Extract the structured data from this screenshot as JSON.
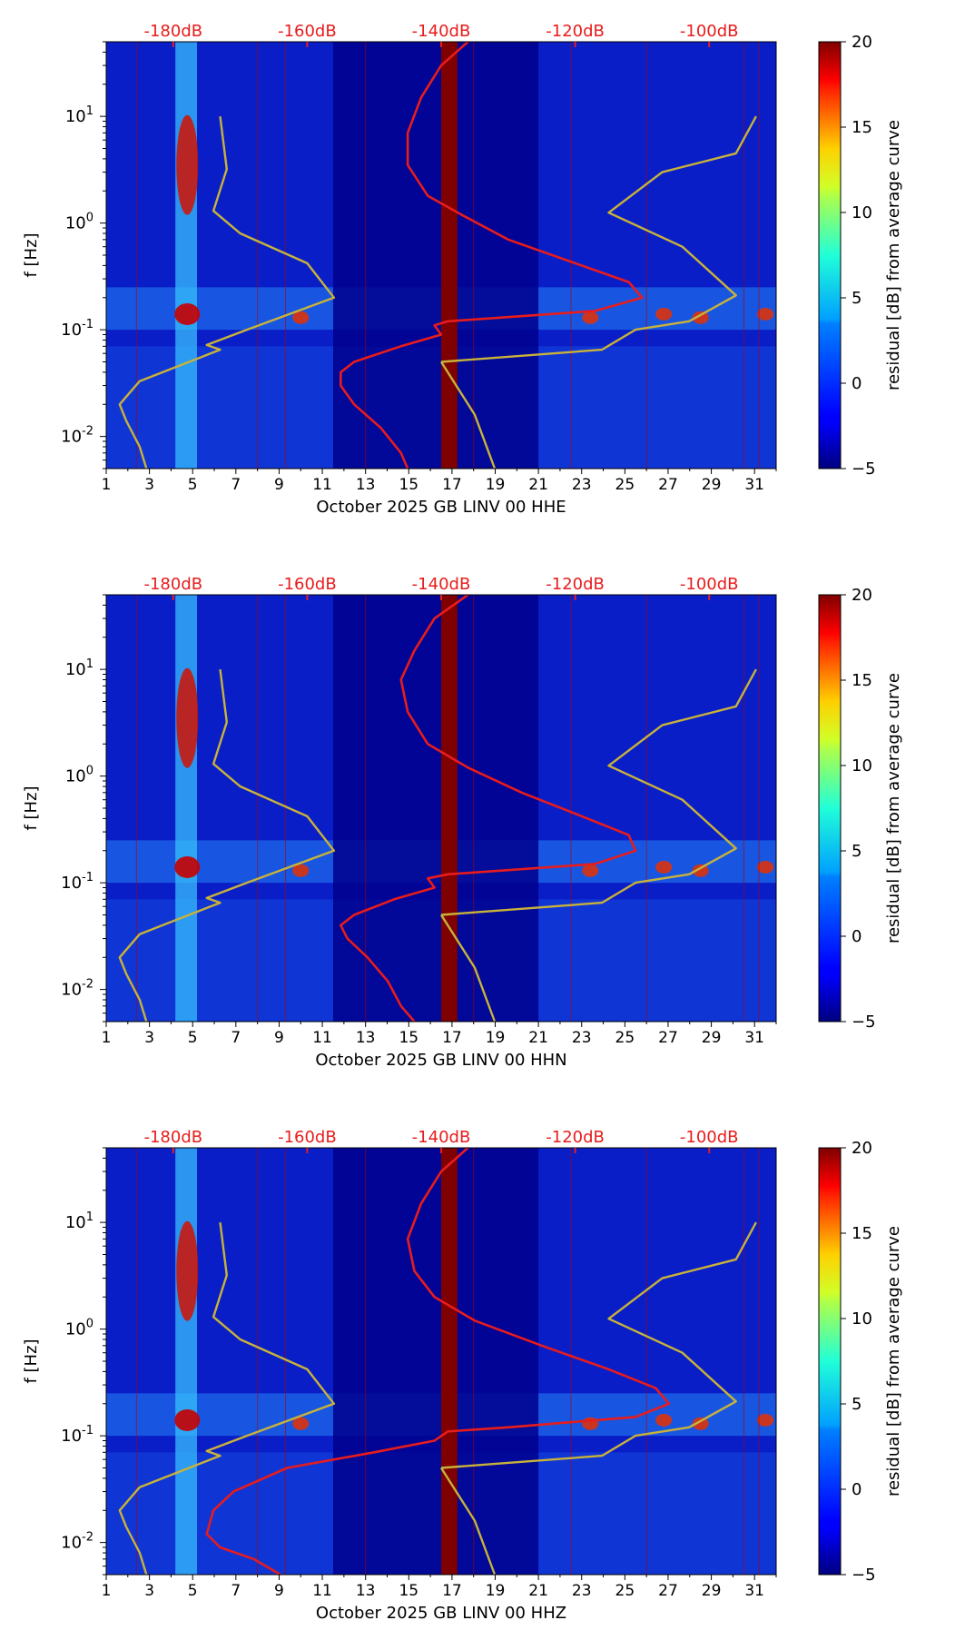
{
  "chart_data": [
    {
      "type": "heatmap",
      "title": "",
      "xlabel": "October 2025 GB LINV 00 HHE",
      "ylabel": "f [Hz]",
      "x_ticks": [
        "1",
        "3",
        "5",
        "7",
        "9",
        "11",
        "13",
        "15",
        "17",
        "19",
        "21",
        "23",
        "25",
        "27",
        "29",
        "31"
      ],
      "x_range": [
        1,
        32
      ],
      "y_range_hz": [
        0.005,
        50
      ],
      "y_ticks": [
        "10^-2",
        "10^-1",
        "10^0",
        "10^1"
      ],
      "top_axis_labels": [
        "-180dB",
        "-160dB",
        "-140dB",
        "-120dB",
        "-100dB"
      ],
      "top_axis_db_range": [
        -190,
        -90
      ],
      "colorbar": {
        "label": "residual [dB] from average curve",
        "min": -5,
        "max": 20,
        "ticks": [
          "−5",
          "0",
          "5",
          "10",
          "15",
          "20"
        ]
      },
      "series": [
        {
          "name": "reference noise model",
          "color": "#c8b23a",
          "points": [
            [
              -173,
              10
            ],
            [
              -172,
              3.2
            ],
            [
              -174,
              1.3
            ],
            [
              -170,
              0.8
            ],
            [
              -160,
              0.42
            ],
            [
              -156,
              0.2
            ],
            [
              -169,
              0.1
            ],
            [
              -175,
              0.072
            ],
            [
              -173,
              0.065
            ],
            [
              -185,
              0.033
            ],
            [
              -188,
              0.02
            ],
            [
              -187,
              0.014
            ],
            [
              -185,
              0.008
            ],
            [
              -184,
              0.005
            ]
          ]
        },
        {
          "name": "reference noise model",
          "color": "#c8b23a",
          "points": [
            [
              -140,
              0.05
            ],
            [
              -135,
              0.016
            ],
            [
              -132,
              0.005
            ]
          ]
        },
        {
          "name": "reference noise model",
          "color": "#c8b23a",
          "points": [
            [
              -93,
              10
            ],
            [
              -96,
              4.5
            ],
            [
              -107,
              3
            ],
            [
              -115,
              1.25
            ],
            [
              -104,
              0.6
            ],
            [
              -96,
              0.21
            ],
            [
              -103,
              0.12
            ],
            [
              -111,
              0.1
            ],
            [
              -116,
              0.065
            ],
            [
              -140,
              0.05
            ]
          ]
        },
        {
          "name": "average PSD",
          "color": "#e81c1c",
          "points": [
            [
              -136,
              50
            ],
            [
              -140,
              30
            ],
            [
              -143,
              15
            ],
            [
              -145,
              7
            ],
            [
              -145,
              3.5
            ],
            [
              -142,
              1.8
            ],
            [
              -137,
              1.2
            ],
            [
              -130,
              0.7
            ],
            [
              -120,
              0.42
            ],
            [
              -112,
              0.28
            ],
            [
              -110,
              0.2
            ],
            [
              -117,
              0.15
            ],
            [
              -139,
              0.12
            ],
            [
              -141,
              0.11
            ],
            [
              -140,
              0.09
            ],
            [
              -146,
              0.07
            ],
            [
              -153,
              0.05
            ],
            [
              -155,
              0.04
            ],
            [
              -155,
              0.03
            ],
            [
              -153,
              0.02
            ],
            [
              -149,
              0.012
            ],
            [
              -146,
              0.007
            ],
            [
              -145,
              0.005
            ]
          ]
        }
      ]
    },
    {
      "type": "heatmap",
      "title": "",
      "xlabel": "October 2025 GB LINV 00 HHN",
      "ylabel": "f [Hz]",
      "x_ticks": [
        "1",
        "3",
        "5",
        "7",
        "9",
        "11",
        "13",
        "15",
        "17",
        "19",
        "21",
        "23",
        "25",
        "27",
        "29",
        "31"
      ],
      "x_range": [
        1,
        32
      ],
      "y_range_hz": [
        0.005,
        50
      ],
      "y_ticks": [
        "10^-2",
        "10^-1",
        "10^0",
        "10^1"
      ],
      "top_axis_labels": [
        "-180dB",
        "-160dB",
        "-140dB",
        "-120dB",
        "-100dB"
      ],
      "top_axis_db_range": [
        -190,
        -90
      ],
      "colorbar": {
        "label": "residual [dB] from average curve",
        "min": -5,
        "max": 20,
        "ticks": [
          "−5",
          "0",
          "5",
          "10",
          "15",
          "20"
        ]
      },
      "series": [
        {
          "name": "reference noise model",
          "color": "#c8b23a",
          "points": [
            [
              -173,
              10
            ],
            [
              -172,
              3.2
            ],
            [
              -174,
              1.3
            ],
            [
              -170,
              0.8
            ],
            [
              -160,
              0.42
            ],
            [
              -156,
              0.2
            ],
            [
              -169,
              0.1
            ],
            [
              -175,
              0.072
            ],
            [
              -173,
              0.065
            ],
            [
              -185,
              0.033
            ],
            [
              -188,
              0.02
            ],
            [
              -187,
              0.014
            ],
            [
              -185,
              0.008
            ],
            [
              -184,
              0.005
            ]
          ]
        },
        {
          "name": "reference noise model",
          "color": "#c8b23a",
          "points": [
            [
              -140,
              0.05
            ],
            [
              -135,
              0.016
            ],
            [
              -132,
              0.005
            ]
          ]
        },
        {
          "name": "reference noise model",
          "color": "#c8b23a",
          "points": [
            [
              -93,
              10
            ],
            [
              -96,
              4.5
            ],
            [
              -107,
              3
            ],
            [
              -115,
              1.25
            ],
            [
              -104,
              0.6
            ],
            [
              -96,
              0.21
            ],
            [
              -103,
              0.12
            ],
            [
              -111,
              0.1
            ],
            [
              -116,
              0.065
            ],
            [
              -140,
              0.05
            ]
          ]
        },
        {
          "name": "average PSD",
          "color": "#e81c1c",
          "points": [
            [
              -136,
              50
            ],
            [
              -141,
              30
            ],
            [
              -144,
              15
            ],
            [
              -146,
              8
            ],
            [
              -145,
              4
            ],
            [
              -142,
              2
            ],
            [
              -136,
              1.2
            ],
            [
              -128,
              0.7
            ],
            [
              -119,
              0.42
            ],
            [
              -112,
              0.28
            ],
            [
              -111,
              0.2
            ],
            [
              -117,
              0.15
            ],
            [
              -139,
              0.12
            ],
            [
              -142,
              0.11
            ],
            [
              -141,
              0.09
            ],
            [
              -147,
              0.07
            ],
            [
              -153,
              0.05
            ],
            [
              -155,
              0.04
            ],
            [
              -154,
              0.03
            ],
            [
              -151,
              0.02
            ],
            [
              -148,
              0.012
            ],
            [
              -146,
              0.007
            ],
            [
              -144,
              0.005
            ]
          ]
        }
      ]
    },
    {
      "type": "heatmap",
      "title": "",
      "xlabel": "October 2025 GB LINV 00 HHZ",
      "ylabel": "f [Hz]",
      "x_ticks": [
        "1",
        "3",
        "5",
        "7",
        "9",
        "11",
        "13",
        "15",
        "17",
        "19",
        "21",
        "23",
        "25",
        "27",
        "29",
        "31"
      ],
      "x_range": [
        1,
        32
      ],
      "y_range_hz": [
        0.005,
        50
      ],
      "y_ticks": [
        "10^-2",
        "10^-1",
        "10^0",
        "10^1"
      ],
      "top_axis_labels": [
        "-180dB",
        "-160dB",
        "-140dB",
        "-120dB",
        "-100dB"
      ],
      "top_axis_db_range": [
        -190,
        -90
      ],
      "colorbar": {
        "label": "residual [dB] from average curve",
        "min": -5,
        "max": 20,
        "ticks": [
          "−5",
          "0",
          "5",
          "10",
          "15",
          "20"
        ]
      },
      "series": [
        {
          "name": "reference noise model",
          "color": "#c8b23a",
          "points": [
            [
              -173,
              10
            ],
            [
              -172,
              3.2
            ],
            [
              -174,
              1.3
            ],
            [
              -170,
              0.8
            ],
            [
              -160,
              0.42
            ],
            [
              -156,
              0.2
            ],
            [
              -169,
              0.1
            ],
            [
              -175,
              0.072
            ],
            [
              -173,
              0.065
            ],
            [
              -185,
              0.033
            ],
            [
              -188,
              0.02
            ],
            [
              -187,
              0.014
            ],
            [
              -185,
              0.008
            ],
            [
              -184,
              0.005
            ]
          ]
        },
        {
          "name": "reference noise model",
          "color": "#c8b23a",
          "points": [
            [
              -140,
              0.05
            ],
            [
              -135,
              0.016
            ],
            [
              -132,
              0.005
            ]
          ]
        },
        {
          "name": "reference noise model",
          "color": "#c8b23a",
          "points": [
            [
              -93,
              10
            ],
            [
              -96,
              4.5
            ],
            [
              -107,
              3
            ],
            [
              -115,
              1.25
            ],
            [
              -104,
              0.6
            ],
            [
              -96,
              0.21
            ],
            [
              -103,
              0.12
            ],
            [
              -111,
              0.1
            ],
            [
              -116,
              0.065
            ],
            [
              -140,
              0.05
            ]
          ]
        },
        {
          "name": "average PSD",
          "color": "#e81c1c",
          "points": [
            [
              -136,
              50
            ],
            [
              -140,
              30
            ],
            [
              -143,
              15
            ],
            [
              -145,
              7
            ],
            [
              -144,
              3.5
            ],
            [
              -141,
              2
            ],
            [
              -135,
              1.2
            ],
            [
              -125,
              0.7
            ],
            [
              -115,
              0.42
            ],
            [
              -108,
              0.28
            ],
            [
              -106,
              0.2
            ],
            [
              -111,
              0.15
            ],
            [
              -130,
              0.12
            ],
            [
              -139,
              0.11
            ],
            [
              -141,
              0.09
            ],
            [
              -150,
              0.07
            ],
            [
              -163,
              0.05
            ],
            [
              -171,
              0.03
            ],
            [
              -174,
              0.02
            ],
            [
              -175,
              0.012
            ],
            [
              -173,
              0.009
            ],
            [
              -168,
              0.007
            ],
            [
              -164,
              0.005
            ]
          ]
        }
      ]
    }
  ]
}
